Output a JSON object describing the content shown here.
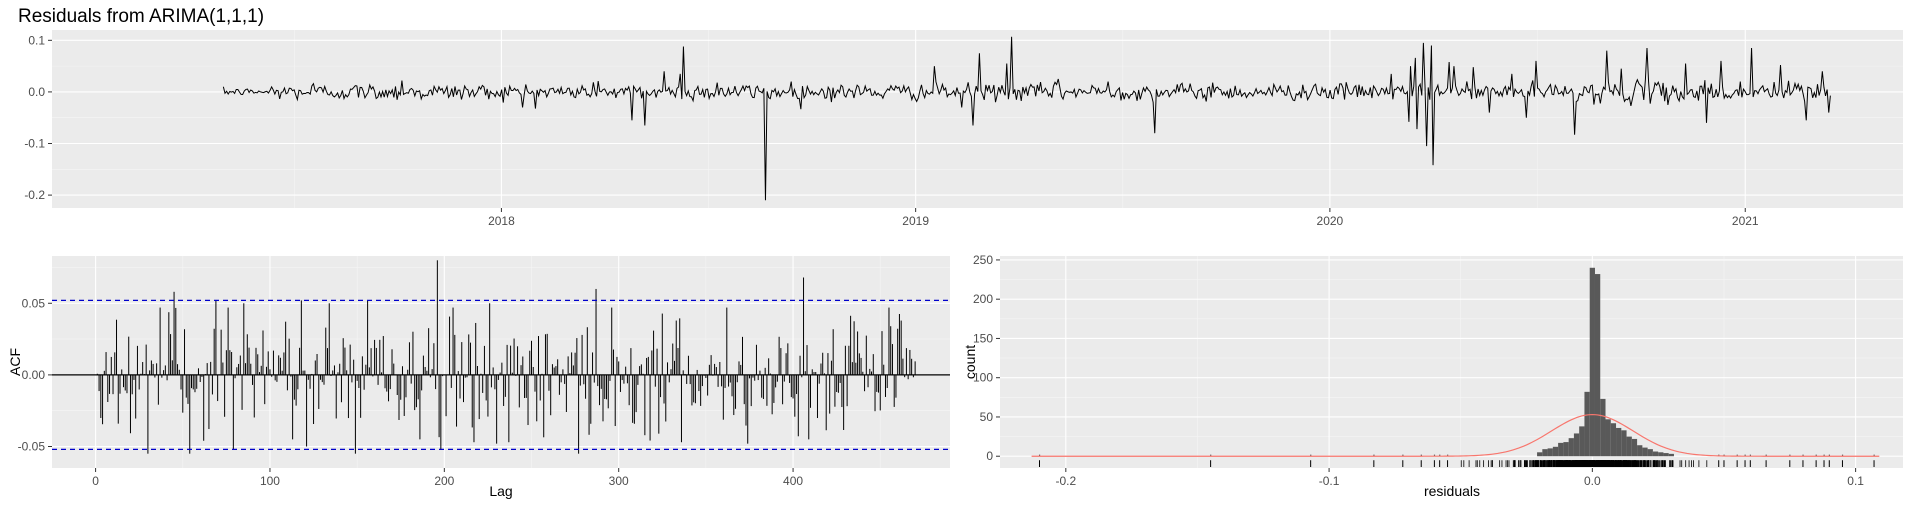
{
  "chart_data": [
    {
      "type": "line",
      "title": "Residuals from ARIMA(1,1,1)",
      "xlabel": "",
      "ylabel": "",
      "x_start": "2017-05-01",
      "x_end": "2021-03-17",
      "xlim": [
        "2016-12-01",
        "2021-05-20"
      ],
      "ylim": [
        -0.225,
        0.12
      ],
      "x_ticks": [
        "2018",
        "2019",
        "2020",
        "2021"
      ],
      "y_ticks": [
        0.1,
        0.0,
        -0.1,
        -0.2
      ],
      "y_tick_labels": [
        "0.1",
        "0.0",
        "-0.1",
        "-0.2"
      ],
      "grid": true,
      "line_color": "#000000",
      "n_points": 1000,
      "noise_amplitude": 0.008,
      "spikes": [
        {
          "x": "2017-07-20",
          "y": 0.016
        },
        {
          "x": "2017-10-05",
          "y": 0.022
        },
        {
          "x": "2018-01-20",
          "y": -0.03
        },
        {
          "x": "2018-03-27",
          "y": 0.021
        },
        {
          "x": "2018-04-26",
          "y": -0.055
        },
        {
          "x": "2018-05-08",
          "y": -0.065
        },
        {
          "x": "2018-05-24",
          "y": 0.04
        },
        {
          "x": "2018-06-07",
          "y": 0.035
        },
        {
          "x": "2018-06-10",
          "y": 0.088
        },
        {
          "x": "2018-07-10",
          "y": 0.018
        },
        {
          "x": "2018-08-22",
          "y": -0.21
        },
        {
          "x": "2018-09-14",
          "y": 0.02
        },
        {
          "x": "2019-01-17",
          "y": 0.05
        },
        {
          "x": "2019-02-10",
          "y": -0.03
        },
        {
          "x": "2019-02-20",
          "y": -0.065
        },
        {
          "x": "2019-02-26",
          "y": 0.075
        },
        {
          "x": "2019-03-22",
          "y": 0.055
        },
        {
          "x": "2019-03-26",
          "y": 0.107
        },
        {
          "x": "2019-05-06",
          "y": 0.025
        },
        {
          "x": "2019-06-20",
          "y": 0.02
        },
        {
          "x": "2019-07-30",
          "y": -0.08
        },
        {
          "x": "2019-09-20",
          "y": 0.018
        },
        {
          "x": "2019-12-20",
          "y": 0.015
        },
        {
          "x": "2020-02-24",
          "y": 0.035
        },
        {
          "x": "2020-03-10",
          "y": -0.058
        },
        {
          "x": "2020-03-12",
          "y": 0.05
        },
        {
          "x": "2020-03-16",
          "y": 0.066
        },
        {
          "x": "2020-03-18",
          "y": -0.072
        },
        {
          "x": "2020-03-23",
          "y": 0.095
        },
        {
          "x": "2020-03-26",
          "y": -0.105
        },
        {
          "x": "2020-03-30",
          "y": 0.09
        },
        {
          "x": "2020-04-01",
          "y": -0.142
        },
        {
          "x": "2020-04-15",
          "y": 0.058
        },
        {
          "x": "2020-04-20",
          "y": 0.05
        },
        {
          "x": "2020-05-06",
          "y": 0.048
        },
        {
          "x": "2020-05-20",
          "y": -0.04
        },
        {
          "x": "2020-06-10",
          "y": 0.035
        },
        {
          "x": "2020-06-22",
          "y": -0.05
        },
        {
          "x": "2020-07-01",
          "y": 0.06
        },
        {
          "x": "2020-08-03",
          "y": -0.083
        },
        {
          "x": "2020-09-01",
          "y": 0.08
        },
        {
          "x": "2020-09-14",
          "y": 0.045
        },
        {
          "x": "2020-10-06",
          "y": 0.085
        },
        {
          "x": "2020-11-10",
          "y": 0.055
        },
        {
          "x": "2020-11-28",
          "y": -0.06
        },
        {
          "x": "2020-12-10",
          "y": 0.06
        },
        {
          "x": "2021-01-06",
          "y": 0.085
        },
        {
          "x": "2021-02-01",
          "y": 0.052
        },
        {
          "x": "2021-02-24",
          "y": -0.055
        },
        {
          "x": "2021-03-10",
          "y": 0.04
        },
        {
          "x": "2021-03-16",
          "y": -0.04
        }
      ]
    },
    {
      "type": "bar",
      "subtype": "acf",
      "title": "",
      "xlabel": "Lag",
      "ylabel": "ACF",
      "xlim": [
        -25,
        490
      ],
      "ylim": [
        -0.065,
        0.083
      ],
      "x_ticks": [
        0,
        100,
        200,
        300,
        400
      ],
      "x_tick_labels": [
        "0",
        "100",
        "200",
        "300",
        "400"
      ],
      "y_ticks": [
        0.05,
        0.0,
        -0.05
      ],
      "y_tick_labels": [
        "0.05",
        "0.00",
        "-0.05"
      ],
      "confidence_band": 0.052,
      "band_color": "#0000cc",
      "max_lag": 470,
      "grid": true,
      "key_lags": [
        {
          "lag": 30,
          "value": -0.055
        },
        {
          "lag": 45,
          "value": 0.058
        },
        {
          "lag": 54,
          "value": -0.055
        },
        {
          "lag": 69,
          "value": 0.052
        },
        {
          "lag": 79,
          "value": -0.052
        },
        {
          "lag": 85,
          "value": 0.05
        },
        {
          "lag": 118,
          "value": 0.052
        },
        {
          "lag": 121,
          "value": -0.05
        },
        {
          "lag": 134,
          "value": 0.05
        },
        {
          "lag": 149,
          "value": -0.055
        },
        {
          "lag": 156,
          "value": 0.052
        },
        {
          "lag": 186,
          "value": -0.045
        },
        {
          "lag": 196,
          "value": 0.08
        },
        {
          "lag": 198,
          "value": -0.052
        },
        {
          "lag": 226,
          "value": 0.05
        },
        {
          "lag": 230,
          "value": -0.048
        },
        {
          "lag": 277,
          "value": -0.055
        },
        {
          "lag": 287,
          "value": 0.06
        },
        {
          "lag": 374,
          "value": -0.048
        },
        {
          "lag": 406,
          "value": 0.068
        },
        {
          "lag": 409,
          "value": -0.045
        },
        {
          "lag": 455,
          "value": 0.047
        }
      ]
    },
    {
      "type": "bar",
      "subtype": "histogram",
      "title": "",
      "xlabel": "residuals",
      "ylabel": "count",
      "xlim": [
        -0.225,
        0.118
      ],
      "ylim": [
        -15,
        255
      ],
      "x_ticks": [
        -0.2,
        -0.1,
        0.0,
        0.1
      ],
      "x_tick_labels": [
        "-0.2",
        "-0.1",
        "0.0",
        "0.1"
      ],
      "y_ticks": [
        0,
        50,
        100,
        150,
        200,
        250
      ],
      "y_tick_labels": [
        "0",
        "50",
        "100",
        "150",
        "200",
        "250"
      ],
      "bar_color": "#595959",
      "density_color": "#f8766d",
      "grid": true,
      "density_peak": 53,
      "density_sd": 0.0155,
      "bins": [
        {
          "x": -0.02,
          "count": 5
        },
        {
          "x": -0.018,
          "count": 9
        },
        {
          "x": -0.016,
          "count": 10
        },
        {
          "x": -0.014,
          "count": 12
        },
        {
          "x": -0.012,
          "count": 17
        },
        {
          "x": -0.01,
          "count": 18
        },
        {
          "x": -0.008,
          "count": 23
        },
        {
          "x": -0.006,
          "count": 29
        },
        {
          "x": -0.004,
          "count": 38
        },
        {
          "x": -0.002,
          "count": 82
        },
        {
          "x": 0.0,
          "count": 240
        },
        {
          "x": 0.002,
          "count": 232
        },
        {
          "x": 0.004,
          "count": 73
        },
        {
          "x": 0.006,
          "count": 47
        },
        {
          "x": 0.008,
          "count": 42
        },
        {
          "x": 0.01,
          "count": 36
        },
        {
          "x": 0.012,
          "count": 33
        },
        {
          "x": 0.014,
          "count": 25
        },
        {
          "x": 0.016,
          "count": 22
        },
        {
          "x": 0.018,
          "count": 14
        },
        {
          "x": 0.02,
          "count": 11
        },
        {
          "x": 0.022,
          "count": 9
        },
        {
          "x": 0.024,
          "count": 6
        },
        {
          "x": 0.026,
          "count": 5
        },
        {
          "x": 0.028,
          "count": 4
        },
        {
          "x": 0.03,
          "count": 3
        }
      ],
      "rug": {
        "isolated": [
          -0.21,
          -0.145,
          -0.107,
          -0.083,
          -0.072,
          -0.065,
          -0.06,
          -0.058,
          -0.055,
          0.048,
          0.05,
          0.055,
          0.058,
          0.06,
          0.066,
          0.075,
          0.08,
          0.085,
          0.088,
          0.09,
          0.095,
          0.107
        ],
        "dense_min": -0.05,
        "dense_max": 0.045
      }
    }
  ]
}
